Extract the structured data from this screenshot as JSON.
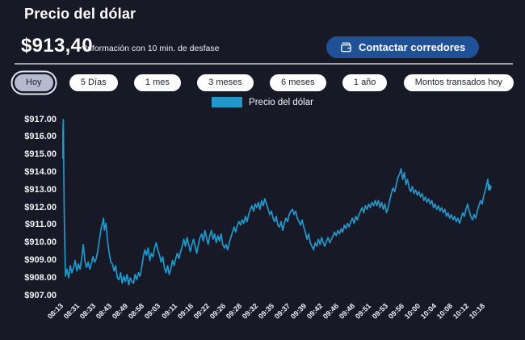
{
  "header": {
    "title": "Precio del dólar",
    "price": "$913,40",
    "disclaimer": "*Información con 10 min. de desfase",
    "contact_button": {
      "label": "Contactar corredores",
      "icon": "wallet-icon"
    }
  },
  "tabs": [
    {
      "label": "Hoy",
      "selected": true
    },
    {
      "label": "5 Días",
      "selected": false
    },
    {
      "label": "1 mes",
      "selected": false
    },
    {
      "label": "3 meses",
      "selected": false
    },
    {
      "label": "6 meses",
      "selected": false
    },
    {
      "label": "1 año",
      "selected": false
    },
    {
      "label": "Montos transados hoy",
      "selected": false
    }
  ],
  "legend": {
    "label": "Precio del dólar",
    "swatch_color": "#2297C9"
  },
  "colors": {
    "background": "#171927",
    "accent_line": "#2297C9",
    "button_bg": "#1F5196",
    "tab_bg": "#FFFFFF",
    "tab_text": "#1C2030",
    "selected_tab_bg": "#B6BACE",
    "divider": "#B4B6BE",
    "text": "#FFFFFF"
  },
  "chart_data": {
    "type": "line",
    "title": "Precio del dólar",
    "xlabel": "",
    "ylabel": "",
    "ylim": [
      907,
      917
    ],
    "grid": false,
    "legend_position": "top-center",
    "y_tick_labels": [
      "$917.00",
      "$916.00",
      "$915.00",
      "$914.00",
      "$913.00",
      "$912.00",
      "$911.00",
      "$910.00",
      "$909.00",
      "$908.00",
      "$907.00"
    ],
    "x_tick_labels": [
      "08:13",
      "08:31",
      "08:33",
      "08:43",
      "08:49",
      "08:58",
      "09:03",
      "09:11",
      "09:16",
      "09:22",
      "09:26",
      "09:28",
      "09:32",
      "09:35",
      "09:37",
      "09:39",
      "09:42",
      "09:46",
      "09:48",
      "09:51",
      "09:53",
      "09:56",
      "10:00",
      "10:04",
      "10:08",
      "10:12",
      "10:18"
    ],
    "x_units": "tick index (0 = 08:13, 26 = 10:18), evenly spaced category axis",
    "x_end": 26.45,
    "series": [
      {
        "name": "Precio del dólar",
        "color": "#2297C9",
        "points": [
          [
            0,
            914.8
          ],
          [
            0.04,
            916.2
          ],
          [
            0.07,
            917
          ],
          [
            0.1,
            914
          ],
          [
            0.13,
            911.5
          ],
          [
            0.17,
            909.6
          ],
          [
            0.2,
            908.1
          ],
          [
            0.3,
            908.5
          ],
          [
            0.4,
            908
          ],
          [
            0.5,
            908.7
          ],
          [
            0.6,
            908.3
          ],
          [
            0.7,
            908.6
          ],
          [
            0.8,
            909
          ],
          [
            0.9,
            908.4
          ],
          [
            1,
            908.8
          ],
          [
            1.1,
            908.5
          ],
          [
            1.2,
            909.1
          ],
          [
            1.3,
            909.9
          ],
          [
            1.4,
            909
          ],
          [
            1.5,
            908.6
          ],
          [
            1.6,
            908.9
          ],
          [
            1.7,
            908.5
          ],
          [
            1.8,
            908.8
          ],
          [
            1.9,
            909.2
          ],
          [
            2,
            908.9
          ],
          [
            2.1,
            909.1
          ],
          [
            2.2,
            909.6
          ],
          [
            2.3,
            910.2
          ],
          [
            2.4,
            910.8
          ],
          [
            2.5,
            911.2
          ],
          [
            2.55,
            911.4
          ],
          [
            2.6,
            910.7
          ],
          [
            2.7,
            911.1
          ],
          [
            2.8,
            910.1
          ],
          [
            2.9,
            909.4
          ],
          [
            3,
            908.9
          ],
          [
            3.1,
            908.8
          ],
          [
            3.2,
            908.4
          ],
          [
            3.3,
            908.7
          ],
          [
            3.4,
            908
          ],
          [
            3.5,
            907.9
          ],
          [
            3.6,
            908.3
          ],
          [
            3.7,
            907.7
          ],
          [
            3.8,
            908.1
          ],
          [
            3.9,
            907.8
          ],
          [
            4,
            908.2
          ],
          [
            4.1,
            907.6
          ],
          [
            4.2,
            908
          ],
          [
            4.3,
            907.8
          ],
          [
            4.4,
            907.7
          ],
          [
            4.5,
            908.2
          ],
          [
            4.6,
            907.9
          ],
          [
            4.7,
            908.3
          ],
          [
            4.8,
            908.1
          ],
          [
            4.9,
            908.6
          ],
          [
            5,
            909.2
          ],
          [
            5.1,
            909.6
          ],
          [
            5.2,
            909.3
          ],
          [
            5.3,
            909.7
          ],
          [
            5.4,
            909
          ],
          [
            5.5,
            909.4
          ],
          [
            5.6,
            909.2
          ],
          [
            5.7,
            909.7
          ],
          [
            5.8,
            910
          ],
          [
            5.9,
            909.6
          ],
          [
            6,
            909.3
          ],
          [
            6.1,
            908.9
          ],
          [
            6.2,
            909.2
          ],
          [
            6.3,
            908.6
          ],
          [
            6.4,
            908.3
          ],
          [
            6.5,
            908.7
          ],
          [
            6.6,
            908.2
          ],
          [
            6.7,
            908.5
          ],
          [
            6.8,
            909
          ],
          [
            6.9,
            908.7
          ],
          [
            7,
            909.1
          ],
          [
            7.1,
            909.4
          ],
          [
            7.2,
            909.1
          ],
          [
            7.3,
            909.5
          ],
          [
            7.4,
            909.8
          ],
          [
            7.5,
            910.2
          ],
          [
            7.6,
            909.8
          ],
          [
            7.7,
            910.3
          ],
          [
            7.8,
            909.9
          ],
          [
            7.9,
            909.5
          ],
          [
            8,
            909.9
          ],
          [
            8.1,
            910.2
          ],
          [
            8.2,
            909.8
          ],
          [
            8.3,
            909.4
          ],
          [
            8.4,
            909.9
          ],
          [
            8.5,
            910.3
          ],
          [
            8.6,
            910.5
          ],
          [
            8.7,
            910.1
          ],
          [
            8.8,
            910.7
          ],
          [
            8.9,
            910.3
          ],
          [
            9,
            909.9
          ],
          [
            9.1,
            910.4
          ],
          [
            9.2,
            910.7
          ],
          [
            9.3,
            910.2
          ],
          [
            9.4,
            910.5
          ],
          [
            9.5,
            910
          ],
          [
            9.6,
            910.4
          ],
          [
            9.7,
            910.1
          ],
          [
            9.8,
            910.5
          ],
          [
            9.9,
            909.9
          ],
          [
            10,
            909.7
          ],
          [
            10.1,
            909.9
          ],
          [
            10.2,
            909.6
          ],
          [
            10.3,
            910
          ],
          [
            10.4,
            910.3
          ],
          [
            10.5,
            910.6
          ],
          [
            10.6,
            910.9
          ],
          [
            10.7,
            910.6
          ],
          [
            10.8,
            911
          ],
          [
            10.9,
            911.2
          ],
          [
            11,
            911
          ],
          [
            11.1,
            911.3
          ],
          [
            11.2,
            911.1
          ],
          [
            11.3,
            911.5
          ],
          [
            11.4,
            911.2
          ],
          [
            11.5,
            911.6
          ],
          [
            11.6,
            911.9
          ],
          [
            11.7,
            912.1
          ],
          [
            11.8,
            911.8
          ],
          [
            11.9,
            912.2
          ],
          [
            12,
            912
          ],
          [
            12.1,
            912.3
          ],
          [
            12.2,
            911.9
          ],
          [
            12.3,
            912.4
          ],
          [
            12.4,
            912.1
          ],
          [
            12.5,
            912.5
          ],
          [
            12.6,
            912.2
          ],
          [
            12.7,
            911.9
          ],
          [
            12.8,
            911.6
          ],
          [
            12.9,
            911.8
          ],
          [
            13,
            911.4
          ],
          [
            13.1,
            911.2
          ],
          [
            13.2,
            911.5
          ],
          [
            13.3,
            911
          ],
          [
            13.4,
            910.9
          ],
          [
            13.5,
            911.2
          ],
          [
            13.6,
            910.7
          ],
          [
            13.7,
            911.1
          ],
          [
            13.8,
            911.4
          ],
          [
            13.9,
            911.2
          ],
          [
            14,
            911.6
          ],
          [
            14.1,
            911.8
          ],
          [
            14.2,
            911.9
          ],
          [
            14.3,
            911.6
          ],
          [
            14.4,
            911.8
          ],
          [
            14.5,
            911.4
          ],
          [
            14.6,
            911.2
          ],
          [
            14.7,
            911
          ],
          [
            14.8,
            911.3
          ],
          [
            14.9,
            910.9
          ],
          [
            15,
            910.6
          ],
          [
            15.1,
            910.2
          ],
          [
            15.2,
            910.5
          ],
          [
            15.3,
            910
          ],
          [
            15.4,
            909.8
          ],
          [
            15.5,
            909.6
          ],
          [
            15.6,
            910
          ],
          [
            15.7,
            909.8
          ],
          [
            15.8,
            910.2
          ],
          [
            15.9,
            909.9
          ],
          [
            16,
            910.3
          ],
          [
            16.1,
            910
          ],
          [
            16.2,
            909.8
          ],
          [
            16.3,
            910.1
          ],
          [
            16.4,
            910.3
          ],
          [
            16.5,
            910
          ],
          [
            16.6,
            910.2
          ],
          [
            16.7,
            910.4
          ],
          [
            16.8,
            910.6
          ],
          [
            16.9,
            910.4
          ],
          [
            17,
            910.7
          ],
          [
            17.1,
            910.5
          ],
          [
            17.2,
            910.8
          ],
          [
            17.3,
            910.6
          ],
          [
            17.4,
            911
          ],
          [
            17.5,
            910.8
          ],
          [
            17.6,
            911.1
          ],
          [
            17.7,
            910.9
          ],
          [
            17.8,
            911.2
          ],
          [
            17.9,
            911.4
          ],
          [
            18,
            911.1
          ],
          [
            18.1,
            911.5
          ],
          [
            18.2,
            911.3
          ],
          [
            18.3,
            911.6
          ],
          [
            18.4,
            911.8
          ],
          [
            18.5,
            912
          ],
          [
            18.6,
            911.7
          ],
          [
            18.7,
            912.1
          ],
          [
            18.8,
            911.9
          ],
          [
            18.9,
            912.2
          ],
          [
            19,
            912
          ],
          [
            19.1,
            912.3
          ],
          [
            19.2,
            912.1
          ],
          [
            19.3,
            912.4
          ],
          [
            19.4,
            912.1
          ],
          [
            19.5,
            912.4
          ],
          [
            19.6,
            912
          ],
          [
            19.7,
            912.3
          ],
          [
            19.8,
            911.9
          ],
          [
            19.9,
            912.2
          ],
          [
            20,
            911.7
          ],
          [
            20.1,
            912
          ],
          [
            20.2,
            912.4
          ],
          [
            20.3,
            912.8
          ],
          [
            20.4,
            913.1
          ],
          [
            20.5,
            912.9
          ],
          [
            20.6,
            913.3
          ],
          [
            20.7,
            913.7
          ],
          [
            20.8,
            913.9
          ],
          [
            20.9,
            914.2
          ],
          [
            21,
            913.6
          ],
          [
            21.1,
            914
          ],
          [
            21.2,
            913.3
          ],
          [
            21.3,
            913.6
          ],
          [
            21.4,
            913.1
          ],
          [
            21.5,
            912.9
          ],
          [
            21.6,
            913.2
          ],
          [
            21.7,
            912.8
          ],
          [
            21.8,
            913
          ],
          [
            21.9,
            912.7
          ],
          [
            22,
            912.9
          ],
          [
            22.1,
            912.6
          ],
          [
            22.2,
            912.8
          ],
          [
            22.3,
            912.4
          ],
          [
            22.4,
            912.6
          ],
          [
            22.5,
            912.3
          ],
          [
            22.6,
            912.5
          ],
          [
            22.7,
            912.2
          ],
          [
            22.8,
            912.4
          ],
          [
            22.9,
            912
          ],
          [
            23,
            912.2
          ],
          [
            23.1,
            911.9
          ],
          [
            23.2,
            912.1
          ],
          [
            23.3,
            911.8
          ],
          [
            23.4,
            912
          ],
          [
            23.5,
            911.7
          ],
          [
            23.6,
            911.9
          ],
          [
            23.7,
            911.5
          ],
          [
            23.8,
            911.7
          ],
          [
            23.9,
            911.4
          ],
          [
            24,
            911.6
          ],
          [
            24.1,
            911.3
          ],
          [
            24.2,
            911.5
          ],
          [
            24.3,
            911.2
          ],
          [
            24.4,
            911.4
          ],
          [
            24.5,
            911.1
          ],
          [
            24.6,
            911.4
          ],
          [
            24.7,
            911.7
          ],
          [
            24.8,
            911.5
          ],
          [
            24.9,
            911.9
          ],
          [
            25,
            912.2
          ],
          [
            25.1,
            911.8
          ],
          [
            25.2,
            911.5
          ],
          [
            25.3,
            911.3
          ],
          [
            25.4,
            911.6
          ],
          [
            25.5,
            911.4
          ],
          [
            25.6,
            911.8
          ],
          [
            25.7,
            912.1
          ],
          [
            25.8,
            912.4
          ],
          [
            25.9,
            912.2
          ],
          [
            26,
            912.7
          ],
          [
            26.1,
            913
          ],
          [
            26.2,
            913.4
          ],
          [
            26.25,
            913.6
          ],
          [
            26.3,
            913
          ],
          [
            26.35,
            913.3
          ],
          [
            26.4,
            913
          ],
          [
            26.45,
            913.2
          ]
        ]
      }
    ]
  }
}
